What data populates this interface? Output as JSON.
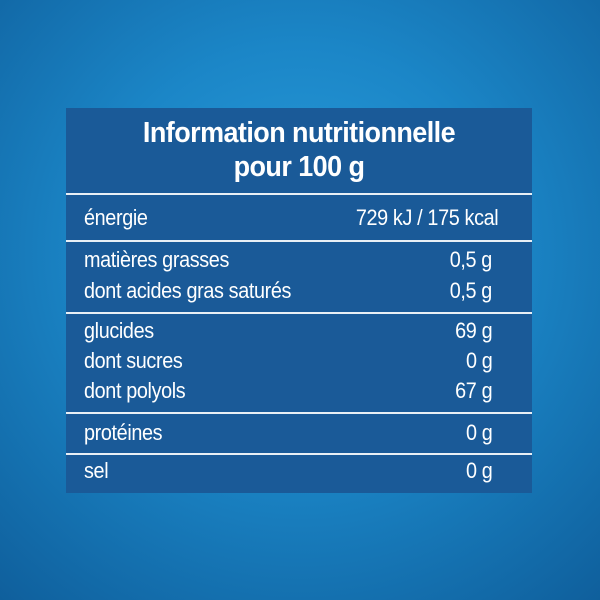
{
  "title": {
    "line1": "Information nutritionnelle",
    "line2": "pour 100 g"
  },
  "rows": {
    "energie": {
      "label": "énergie",
      "value": "729 kJ / 175 kcal"
    },
    "matieres_grasses": {
      "label": "matières grasses",
      "value": "0,5 g"
    },
    "acides_gras_satures": {
      "label": "dont acides gras saturés",
      "value": "0,5 g"
    },
    "glucides": {
      "label": "glucides",
      "value": "69 g"
    },
    "sucres": {
      "label": "dont sucres",
      "value": "0 g"
    },
    "polyols": {
      "label": "dont polyols",
      "value": "67 g"
    },
    "proteines": {
      "label": "protéines",
      "value": "0 g"
    },
    "sel": {
      "label": "sel",
      "value": "0 g"
    }
  },
  "colors": {
    "background": "#1b86c7",
    "panel": "#1a5a98",
    "text": "#ffffff"
  }
}
